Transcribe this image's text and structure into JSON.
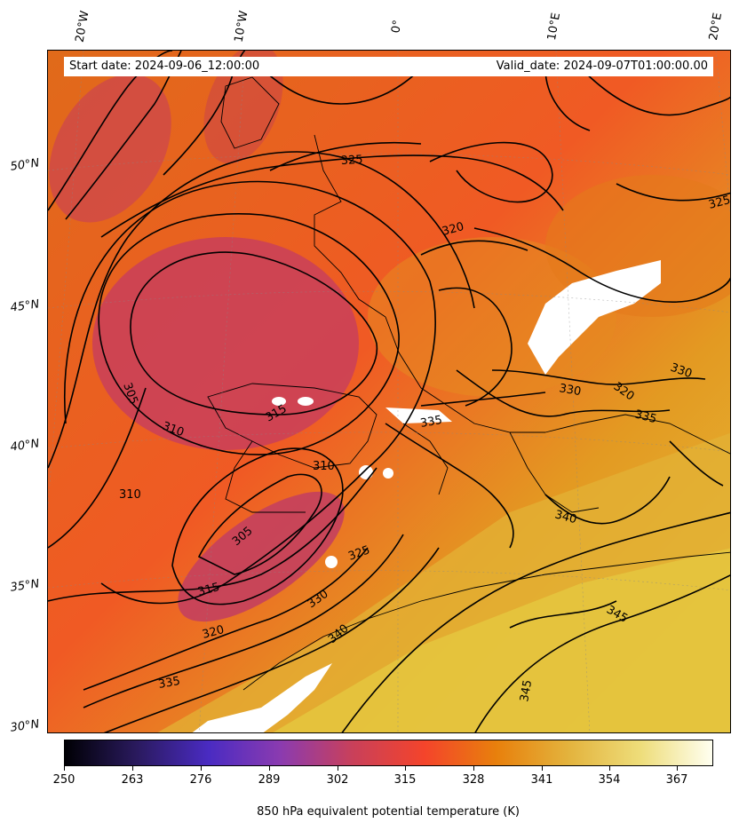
{
  "header": {
    "start_label": "Start date: 2024-09-06_12:00:00",
    "valid_label": "Valid_date: 2024-09-07T01:00:00.00"
  },
  "map": {
    "longitude_labels": [
      "20°W",
      "10°W",
      "0°",
      "10°E",
      "20°E"
    ],
    "latitude_labels": [
      "50°N",
      "45°N",
      "40°N",
      "35°N",
      "30°N"
    ],
    "contour_labels": [
      "305",
      "310",
      "315",
      "320",
      "325",
      "330",
      "335",
      "340",
      "345"
    ],
    "contour_color": "#000000"
  },
  "colorbar": {
    "title": "850 hPa equivalent potential temperature (K)",
    "ticks": [
      "250",
      "263",
      "276",
      "289",
      "302",
      "315",
      "328",
      "341",
      "354",
      "367"
    ],
    "colormap": [
      "#000004",
      "#2a1a5e",
      "#4a2bc2",
      "#8b3bb0",
      "#c9405a",
      "#f4442b",
      "#e8800c",
      "#e3b33d",
      "#eedd7a",
      "#fffff0"
    ]
  }
}
